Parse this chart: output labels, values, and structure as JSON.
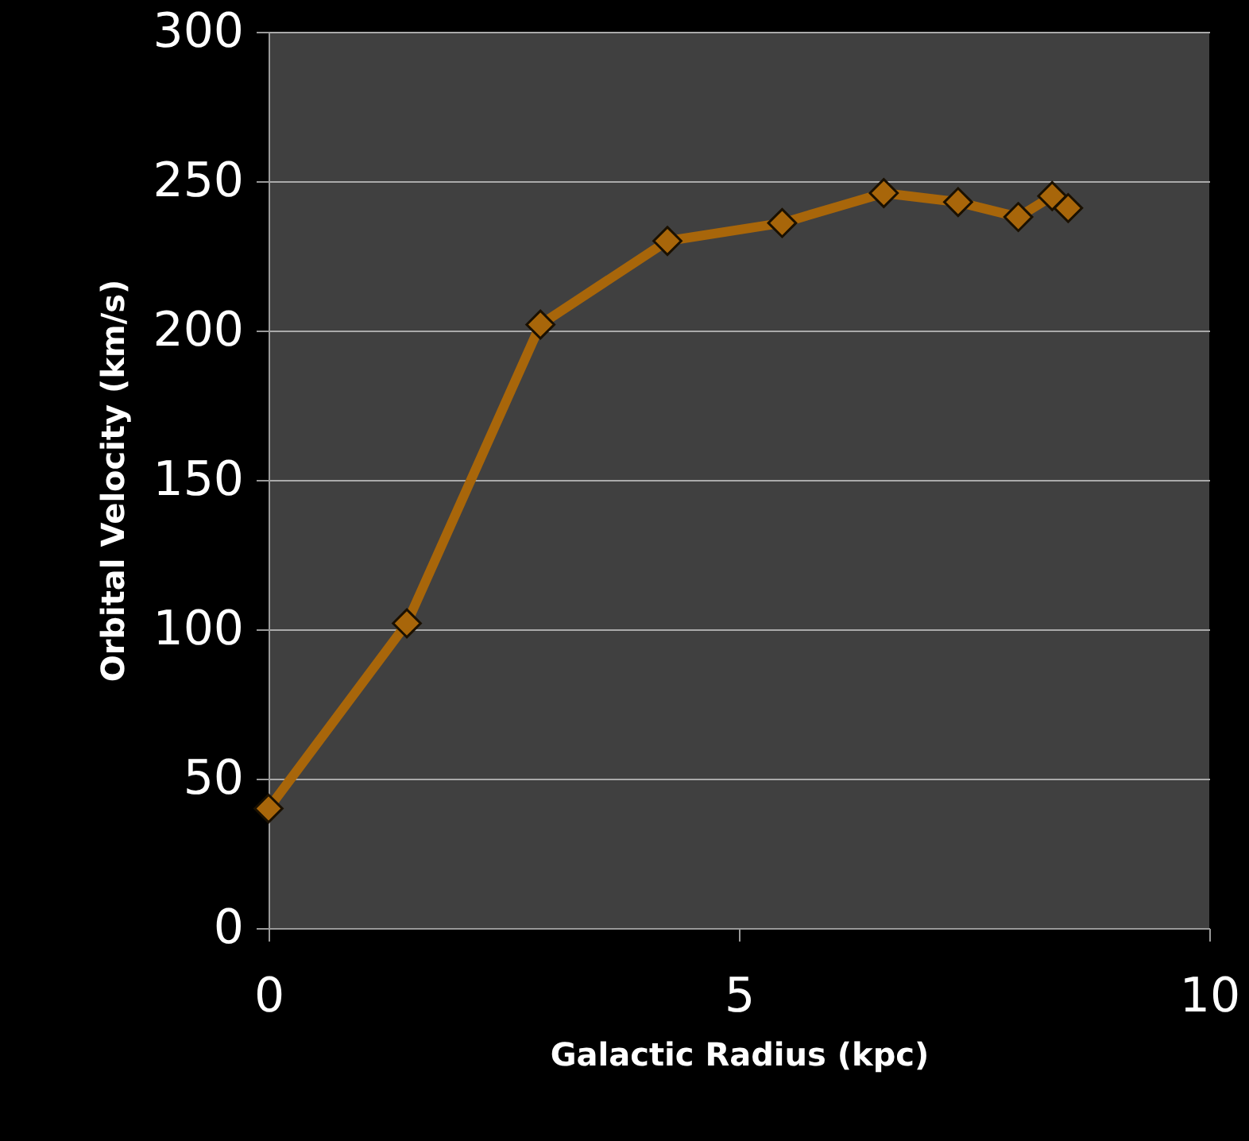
{
  "chart_data": {
    "type": "line",
    "xlabel": "Galactic Radius (kpc)",
    "ylabel": "Orbital Velocity (km/s)",
    "x": [
      0,
      1.47,
      2.89,
      4.24,
      5.46,
      6.54,
      7.33,
      7.97,
      8.33,
      8.5
    ],
    "series": [
      {
        "color": "#a8660a",
        "values": [
          40,
          102,
          202,
          230,
          236,
          246,
          243,
          238,
          245,
          241
        ]
      }
    ],
    "xlim": [
      0,
      10
    ],
    "xticks": [
      0,
      5,
      10
    ],
    "ylim": [
      0,
      300
    ],
    "yticks": [
      0,
      50,
      100,
      150,
      200,
      250,
      300
    ],
    "grid": "y",
    "marker": "diamond",
    "line_style": "solid"
  }
}
